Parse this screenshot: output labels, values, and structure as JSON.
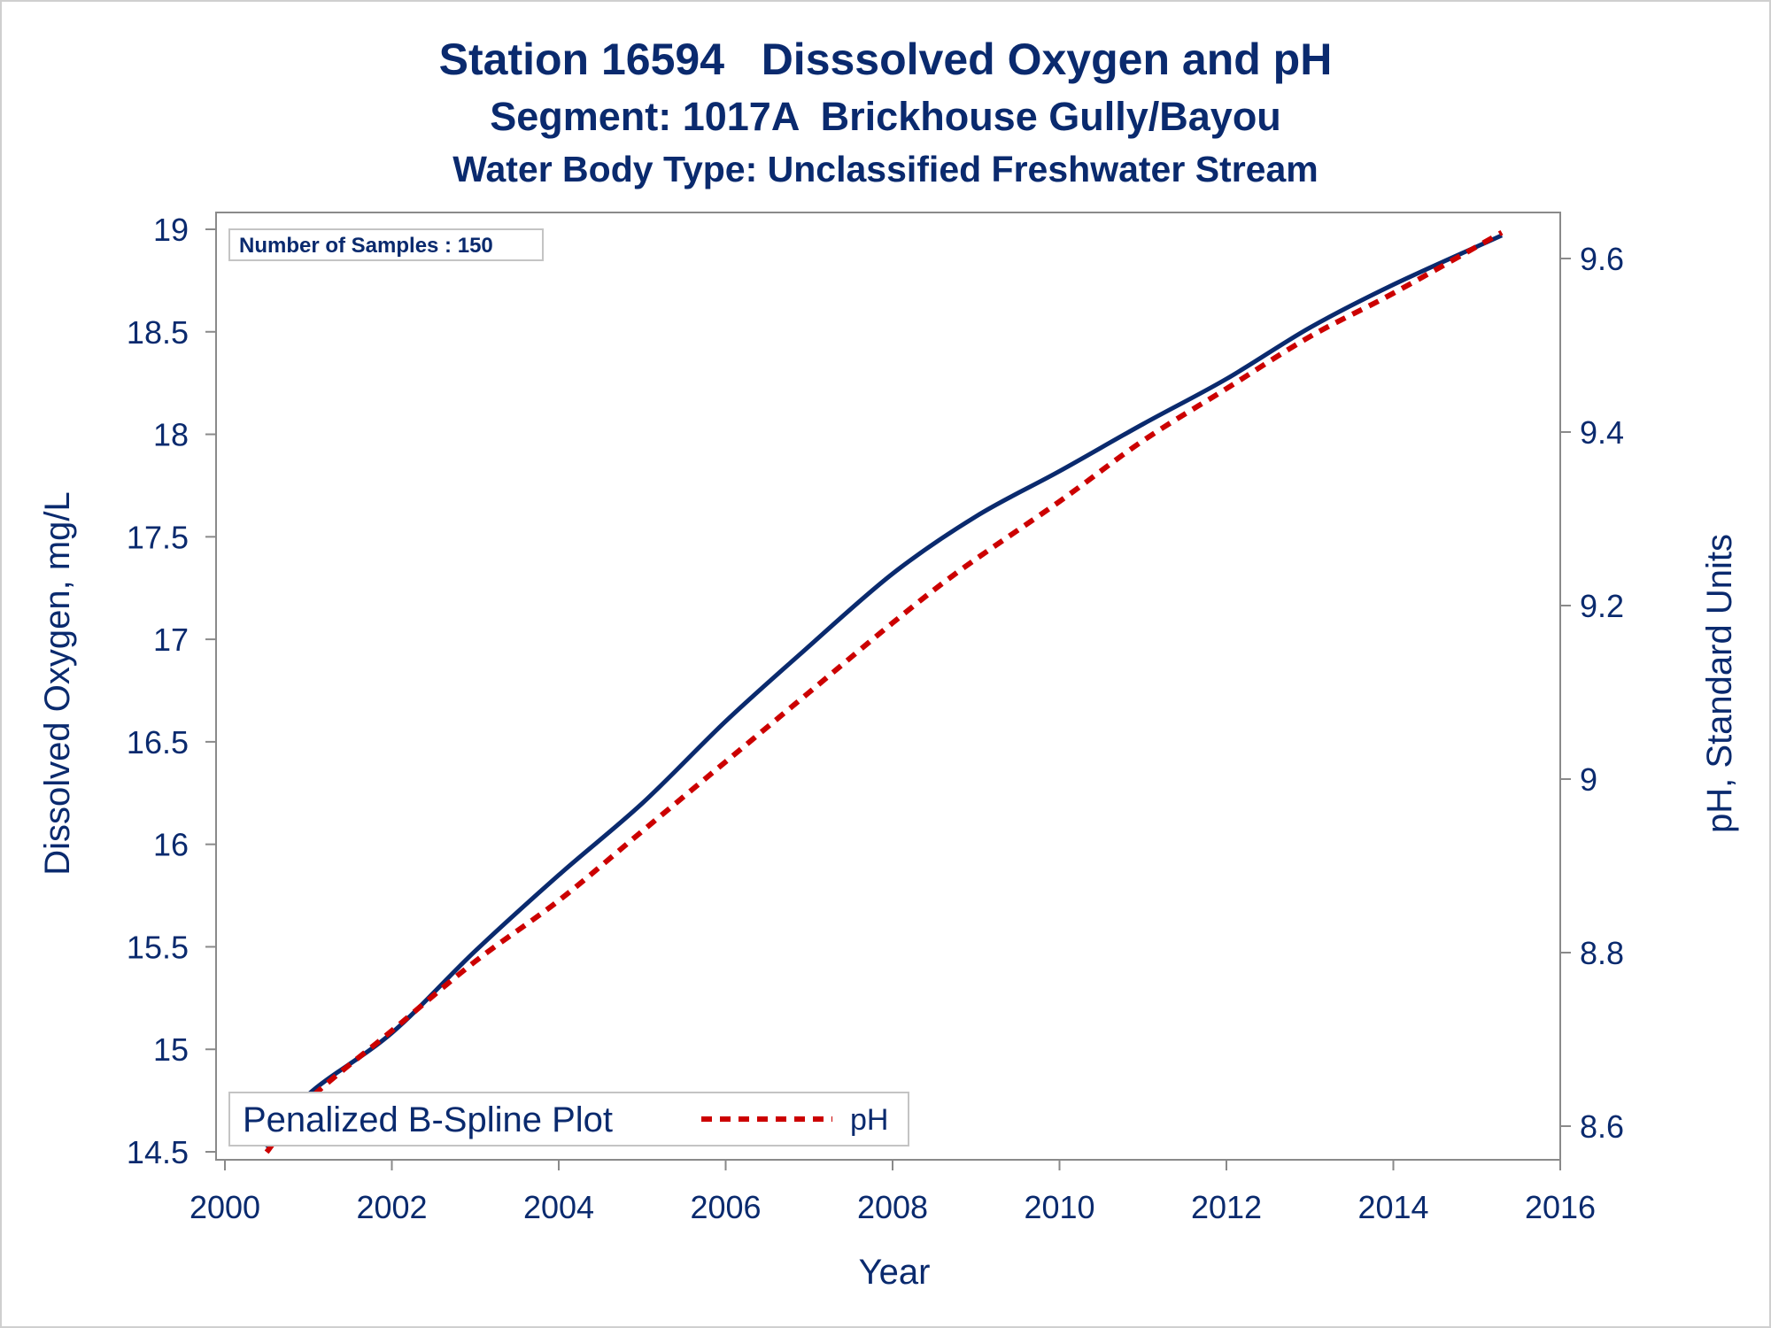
{
  "chart_data": {
    "type": "line",
    "title": "Station 16594   Disssolved Oxygen and pH",
    "subtitle": "Segment: 1017A  Brickhouse Gully/Bayou",
    "subtitle2": "Water Body Type: Unclassified Freshwater Stream",
    "xlabel": "Year",
    "ylabel": "Dissolved Oxygen, mg/L",
    "y2label": "pH, Standard Units",
    "xlim": [
      2000,
      2016
    ],
    "ylim": [
      14.5,
      19
    ],
    "y2lim": [
      8.6,
      9.6
    ],
    "xticks": [
      "2000",
      "2002",
      "2004",
      "2006",
      "2008",
      "2010",
      "2012",
      "2014",
      "2016"
    ],
    "yticks": [
      "14.5",
      "15",
      "15.5",
      "16",
      "16.5",
      "17",
      "17.5",
      "18",
      "18.5",
      "19"
    ],
    "y2ticks": [
      "8.6",
      "8.8",
      "9",
      "9.2",
      "9.4",
      "9.6"
    ],
    "grid": false,
    "inset_label": "Number of Samples : 150",
    "legend": {
      "placement": "bottom-left",
      "title": "Penalized B-Spline Plot",
      "items": [
        "pH"
      ]
    },
    "series": [
      {
        "name": "",
        "axis": "left",
        "color": "#0a2a6e",
        "style": "solid",
        "x": [
          2000.5,
          2001.0,
          2002.0,
          2003.0,
          2004.0,
          2005.0,
          2006.0,
          2006.9,
          2008.0,
          2009.0,
          2010.0,
          2011.0,
          2012.0,
          2013.0,
          2014.0,
          2015.3
        ],
        "y": [
          14.52,
          14.78,
          15.08,
          15.48,
          15.85,
          16.2,
          16.6,
          16.93,
          17.32,
          17.6,
          17.82,
          18.05,
          18.27,
          18.52,
          18.73,
          18.97
        ]
      },
      {
        "name": "pH",
        "axis": "right",
        "color": "#cc0000",
        "style": "dashed",
        "x": [
          2000.5,
          2001.0,
          2002.0,
          2003.0,
          2004.0,
          2005.0,
          2006.0,
          2007.0,
          2008.0,
          2008.8,
          2010.0,
          2011.0,
          2012.0,
          2013.0,
          2014.0,
          2015.3
        ],
        "y": [
          8.57,
          8.63,
          8.71,
          8.79,
          8.86,
          8.94,
          9.02,
          9.1,
          9.18,
          9.24,
          9.32,
          9.39,
          9.45,
          9.51,
          9.56,
          9.63
        ]
      }
    ],
    "colors": {
      "text": "#0a2a6e",
      "axis": "#8a8a8a",
      "do_line": "#0a2a6e",
      "ph_line": "#cc0000"
    }
  }
}
